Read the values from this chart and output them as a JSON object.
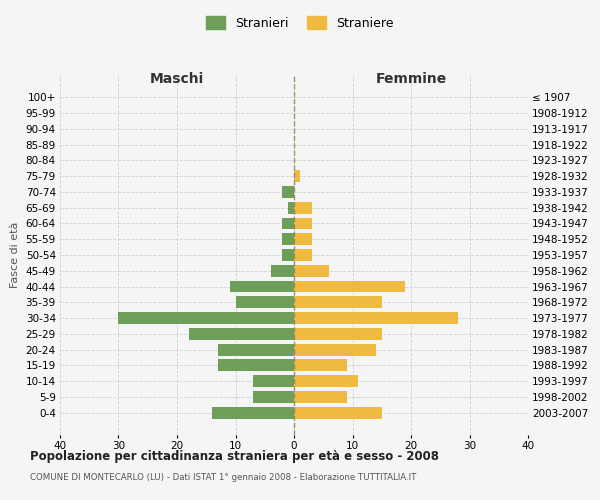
{
  "age_groups": [
    "100+",
    "95-99",
    "90-94",
    "85-89",
    "80-84",
    "75-79",
    "70-74",
    "65-69",
    "60-64",
    "55-59",
    "50-54",
    "45-49",
    "40-44",
    "35-39",
    "30-34",
    "25-29",
    "20-24",
    "15-19",
    "10-14",
    "5-9",
    "0-4"
  ],
  "birth_years": [
    "≤ 1907",
    "1908-1912",
    "1913-1917",
    "1918-1922",
    "1923-1927",
    "1928-1932",
    "1933-1937",
    "1938-1942",
    "1943-1947",
    "1948-1952",
    "1953-1957",
    "1958-1962",
    "1963-1967",
    "1968-1972",
    "1973-1977",
    "1978-1982",
    "1983-1987",
    "1988-1992",
    "1993-1997",
    "1998-2002",
    "2003-2007"
  ],
  "males": [
    0,
    0,
    0,
    0,
    0,
    0,
    2,
    1,
    2,
    2,
    2,
    4,
    11,
    10,
    30,
    18,
    13,
    13,
    7,
    7,
    14
  ],
  "females": [
    0,
    0,
    0,
    0,
    0,
    1,
    0,
    3,
    3,
    3,
    3,
    6,
    19,
    15,
    28,
    15,
    14,
    9,
    11,
    9,
    15
  ],
  "male_color": "#6d9e5a",
  "female_color": "#f0b942",
  "background_color": "#f5f5f5",
  "grid_color": "#cccccc",
  "title": "Popolazione per cittadinanza straniera per età e sesso - 2008",
  "subtitle": "COMUNE DI MONTECARLO (LU) - Dati ISTAT 1° gennaio 2008 - Elaborazione TUTTITALIA.IT",
  "left_header": "Maschi",
  "right_header": "Femmine",
  "ylabel_left": "Fasce di età",
  "legend_male": "Stranieri",
  "legend_female": "Straniere",
  "xlim": 40
}
